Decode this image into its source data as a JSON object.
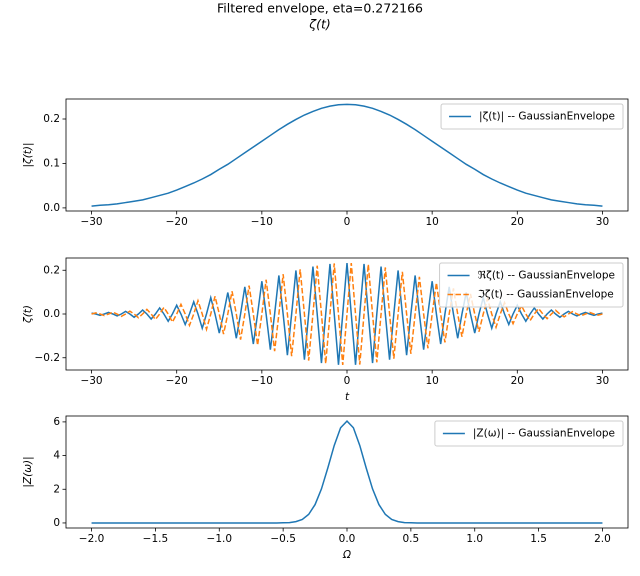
{
  "title": "Filtered envelope, eta=0.272166",
  "subtitle": "ζ(t)",
  "chart_data": [
    {
      "type": "line",
      "ylabel": "|ζ(t)|",
      "legend": "upper right",
      "x": [
        -30,
        -29,
        -28,
        -27,
        -26,
        -25,
        -24,
        -23,
        -22,
        -21,
        -20,
        -19,
        -18,
        -17,
        -16,
        -15,
        -14,
        -13,
        -12,
        -11,
        -10,
        -9,
        -8,
        -7,
        -6,
        -5,
        -4,
        -3,
        -2,
        -1,
        0,
        1,
        2,
        3,
        4,
        5,
        6,
        7,
        8,
        9,
        10,
        11,
        12,
        13,
        14,
        15,
        16,
        17,
        18,
        19,
        20,
        21,
        22,
        23,
        24,
        25,
        26,
        27,
        28,
        29,
        30
      ],
      "series": [
        {
          "name": "|ζ(t)| -- GaussianEnvelope",
          "color": "#1f77b4",
          "linestyle": "solid",
          "values": [
            0.004,
            0.006,
            0.007,
            0.009,
            0.012,
            0.015,
            0.018,
            0.023,
            0.028,
            0.033,
            0.04,
            0.048,
            0.056,
            0.065,
            0.075,
            0.087,
            0.098,
            0.111,
            0.124,
            0.137,
            0.15,
            0.163,
            0.176,
            0.188,
            0.199,
            0.209,
            0.217,
            0.224,
            0.229,
            0.232,
            0.233,
            0.232,
            0.229,
            0.224,
            0.217,
            0.209,
            0.199,
            0.188,
            0.176,
            0.163,
            0.15,
            0.137,
            0.124,
            0.111,
            0.098,
            0.087,
            0.075,
            0.065,
            0.056,
            0.048,
            0.04,
            0.033,
            0.028,
            0.023,
            0.018,
            0.015,
            0.012,
            0.009,
            0.007,
            0.006,
            0.004
          ]
        }
      ],
      "xlim": [
        -33,
        33
      ],
      "ylim": [
        -0.007,
        0.245
      ],
      "xticks": [
        {
          "value": -30,
          "label": "−30"
        },
        {
          "value": -20,
          "label": "−20"
        },
        {
          "value": -10,
          "label": "−10"
        },
        0,
        10,
        20,
        30
      ],
      "yticks": [
        {
          "value": 0,
          "label": "0.0"
        },
        0.1,
        0.2
      ]
    },
    {
      "type": "line",
      "ylabel": "ζ(t)",
      "xlabel": "t",
      "legend": "upper right",
      "x": [
        -30,
        -29.5,
        -29,
        -28.5,
        -28,
        -27.5,
        -27,
        -26.5,
        -26,
        -25.5,
        -25,
        -24.5,
        -24,
        -23.5,
        -23,
        -22.5,
        -22,
        -21.5,
        -21,
        -20.5,
        -20,
        -19.5,
        -19,
        -18.5,
        -18,
        -17.5,
        -17,
        -16.5,
        -16,
        -15.5,
        -15,
        -14.5,
        -14,
        -13.5,
        -13,
        -12.5,
        -12,
        -11.5,
        -11,
        -10.5,
        -10,
        -9.5,
        -9,
        -8.5,
        -8,
        -7.5,
        -7,
        -6.5,
        -6,
        -5.5,
        -5,
        -4.5,
        -4,
        -3.5,
        -3,
        -2.5,
        -2,
        -1.5,
        -1,
        -0.5,
        0,
        0.5,
        1,
        1.5,
        2,
        2.5,
        3,
        3.5,
        4,
        4.5,
        5,
        5.5,
        6,
        6.5,
        7,
        7.5,
        8,
        8.5,
        9,
        9.5,
        10,
        10.5,
        11,
        11.5,
        12,
        12.5,
        13,
        13.5,
        14,
        14.5,
        15,
        15.5,
        16,
        16.5,
        17,
        17.5,
        18,
        18.5,
        19,
        19.5,
        20,
        20.5,
        21,
        21.5,
        22,
        22.5,
        23,
        23.5,
        24,
        24.5,
        25,
        25.5,
        26,
        26.5,
        27,
        27.5,
        28,
        28.5,
        29,
        29.5,
        30
      ],
      "series": [
        {
          "name": "ℜζ(t) -- GaussianEnvelope",
          "color": "#1f77b4",
          "linestyle": "solid",
          "values": [
            0.004,
            0,
            -0.006,
            0,
            0.007,
            0,
            -0.009,
            0,
            0.012,
            0,
            -0.015,
            0,
            0.018,
            0,
            -0.023,
            0,
            0.028,
            0,
            -0.033,
            0,
            0.04,
            0,
            -0.048,
            0,
            0.056,
            0,
            -0.065,
            0,
            0.075,
            0,
            -0.087,
            0,
            0.098,
            0,
            -0.111,
            0,
            0.124,
            0,
            -0.137,
            0,
            0.15,
            0,
            -0.163,
            0,
            0.176,
            0,
            -0.188,
            0,
            0.199,
            0,
            -0.209,
            0,
            0.217,
            0,
            -0.224,
            0,
            0.229,
            0,
            -0.232,
            0,
            0.233,
            0,
            -0.232,
            0,
            0.229,
            0,
            -0.224,
            0,
            0.217,
            0,
            -0.209,
            0,
            0.199,
            0,
            -0.188,
            0,
            0.176,
            0,
            -0.163,
            0,
            0.15,
            0,
            -0.137,
            0,
            0.124,
            0,
            -0.111,
            0,
            0.098,
            0,
            -0.087,
            0,
            0.075,
            0,
            -0.065,
            0,
            0.056,
            0,
            -0.048,
            0,
            0.04,
            0,
            -0.033,
            0,
            0.028,
            0,
            -0.023,
            0,
            0.018,
            0,
            -0.015,
            0,
            0.012,
            0,
            -0.009,
            0,
            0.007,
            0,
            -0.006,
            0,
            0.004
          ]
        },
        {
          "name": "ℑζ(t) -- GaussianEnvelope",
          "color": "#ff7f0e",
          "linestyle": "dashed",
          "values": [
            0,
            0.005,
            0,
            -0.007,
            0,
            0.008,
            0,
            -0.011,
            0,
            0.013,
            0,
            -0.017,
            0,
            0.021,
            0,
            -0.025,
            0,
            0.03,
            0,
            -0.037,
            0,
            0.044,
            0,
            -0.052,
            0,
            0.061,
            0,
            -0.07,
            0,
            0.081,
            0,
            -0.092,
            0,
            0.104,
            0,
            -0.117,
            0,
            0.13,
            0,
            -0.143,
            0,
            0.157,
            0,
            -0.17,
            0,
            0.182,
            0,
            -0.193,
            0,
            0.204,
            0,
            -0.213,
            0,
            0.221,
            0,
            -0.227,
            0,
            0.231,
            0,
            -0.233,
            0,
            0.233,
            0,
            -0.231,
            0,
            0.227,
            0,
            -0.221,
            0,
            0.213,
            0,
            -0.204,
            0,
            0.193,
            0,
            -0.182,
            0,
            0.17,
            0,
            -0.157,
            0,
            0.143,
            0,
            -0.13,
            0,
            0.117,
            0,
            -0.104,
            0,
            0.092,
            0,
            -0.081,
            0,
            0.07,
            0,
            -0.061,
            0,
            0.052,
            0,
            -0.044,
            0,
            0.037,
            0,
            -0.03,
            0,
            0.025,
            0,
            -0.021,
            0,
            0.017,
            0,
            -0.013,
            0,
            0.011,
            0,
            -0.008,
            0,
            0.007,
            0,
            -0.005,
            0
          ]
        }
      ],
      "xlim": [
        -33,
        33
      ],
      "ylim": [
        -0.256,
        0.256
      ],
      "xticks": [
        {
          "value": -30,
          "label": "−30"
        },
        {
          "value": -20,
          "label": "−20"
        },
        {
          "value": -10,
          "label": "−10"
        },
        0,
        10,
        20,
        30
      ],
      "yticks": [
        {
          "value": -0.2,
          "label": "−0.2"
        },
        {
          "value": 0,
          "label": "0.0"
        },
        0.2
      ]
    },
    {
      "type": "line",
      "ylabel": "|Z(ω)|",
      "xlabel": "Ω",
      "legend": "upper right",
      "x": [
        -2,
        -1.95,
        -1.9,
        -1.85,
        -1.8,
        -1.75,
        -1.7,
        -1.65,
        -1.6,
        -1.55,
        -1.5,
        -1.45,
        -1.4,
        -1.35,
        -1.3,
        -1.25,
        -1.2,
        -1.15,
        -1.1,
        -1.05,
        -1,
        -0.95,
        -0.9,
        -0.85,
        -0.8,
        -0.75,
        -0.7,
        -0.65,
        -0.6,
        -0.55,
        -0.5,
        -0.45,
        -0.4,
        -0.35,
        -0.3,
        -0.25,
        -0.2,
        -0.15,
        -0.1,
        -0.05,
        0,
        0.05,
        0.1,
        0.15,
        0.2,
        0.25,
        0.3,
        0.35,
        0.4,
        0.45,
        0.5,
        0.55,
        0.6,
        0.65,
        0.7,
        0.75,
        0.8,
        0.85,
        0.9,
        0.95,
        1,
        1.05,
        1.1,
        1.15,
        1.2,
        1.25,
        1.3,
        1.35,
        1.4,
        1.45,
        1.5,
        1.55,
        1.6,
        1.65,
        1.7,
        1.75,
        1.8,
        1.85,
        1.9,
        1.95,
        2
      ],
      "series": [
        {
          "name": "|Z(ω)| -- GaussianEnvelope",
          "color": "#1f77b4",
          "linestyle": "solid",
          "values": [
            0,
            0,
            0,
            0,
            0,
            0,
            0,
            0,
            0,
            0,
            0,
            0,
            0,
            0,
            0,
            0,
            0,
            0,
            0,
            0,
            0,
            0,
            0,
            0,
            0,
            0,
            0,
            0,
            0,
            0,
            0.01,
            0.02,
            0.08,
            0.21,
            0.51,
            1.09,
            2.02,
            3.27,
            4.6,
            5.65,
            6.05,
            5.65,
            4.6,
            3.27,
            2.02,
            1.09,
            0.51,
            0.21,
            0.08,
            0.02,
            0.01,
            0,
            0,
            0,
            0,
            0,
            0,
            0,
            0,
            0,
            0,
            0,
            0,
            0,
            0,
            0,
            0,
            0,
            0,
            0,
            0,
            0,
            0,
            0,
            0,
            0,
            0,
            0,
            0,
            0,
            0
          ]
        }
      ],
      "xlim": [
        -2.2,
        2.2
      ],
      "ylim": [
        -0.3,
        6.35
      ],
      "xticks": [
        {
          "value": -2,
          "label": "−2.0"
        },
        {
          "value": -1.5,
          "label": "−1.5"
        },
        {
          "value": -1,
          "label": "−1.0"
        },
        {
          "value": -0.5,
          "label": "−0.5"
        },
        {
          "value": 0,
          "label": "0.0"
        },
        0.5,
        {
          "value": 1,
          "label": "1.0"
        },
        1.5,
        {
          "value": 2,
          "label": "2.0"
        }
      ],
      "yticks": [
        0,
        2,
        4,
        6
      ]
    }
  ]
}
